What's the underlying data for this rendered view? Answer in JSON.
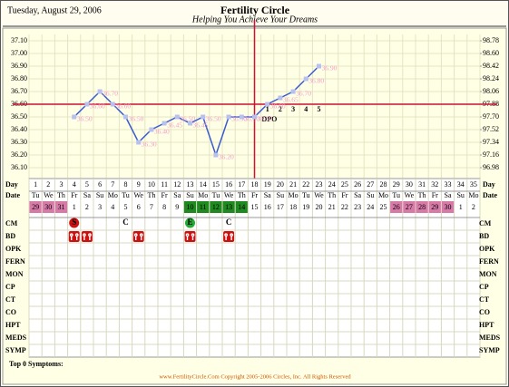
{
  "header": {
    "date": "Tuesday, August 29, 2006",
    "title": "Fertility Circle",
    "subtitle": "Helping You Achieve Your Dreams"
  },
  "chart_data": {
    "type": "line",
    "categories": [
      1,
      2,
      3,
      4,
      5,
      6,
      7,
      8,
      9,
      10,
      11,
      12,
      13,
      14,
      15,
      16,
      17,
      18,
      19,
      20,
      21,
      22,
      23,
      24,
      25,
      26,
      27,
      28,
      29,
      30,
      31,
      32,
      33,
      34,
      35
    ],
    "values": [
      null,
      null,
      null,
      36.5,
      36.6,
      36.7,
      36.6,
      36.5,
      36.3,
      36.4,
      36.45,
      36.5,
      36.45,
      36.5,
      36.2,
      36.5,
      36.5,
      36.5,
      36.6,
      36.65,
      36.7,
      36.8,
      36.9,
      null,
      null,
      null,
      null,
      null,
      null,
      null,
      null,
      null,
      null,
      null,
      null
    ],
    "value_labels": [
      null,
      null,
      null,
      "36.50",
      "36.60",
      "36.70",
      "36.60",
      "36.50",
      "36.30",
      "36.40",
      "36.45",
      "36.50",
      "36.45",
      "36.50",
      "36.20",
      "36.50",
      "36.50",
      "36.50",
      "36.60",
      "36.65",
      "36.70",
      "36.80",
      "36.90",
      null,
      null,
      null,
      null,
      null,
      null,
      null,
      null,
      null,
      null,
      null,
      null
    ],
    "color": "#3a5bd0",
    "marker_color": "#b8c0f0",
    "ylim": [
      36.1,
      37.1
    ],
    "yticks": [
      {
        "value": 37.1,
        "label": "37.10"
      },
      {
        "value": 37.0,
        "label": "37.00"
      },
      {
        "value": 36.9,
        "label": "36.90"
      },
      {
        "value": 36.8,
        "label": "36.80"
      },
      {
        "value": 36.7,
        "label": "36.70"
      },
      {
        "value": 36.6,
        "label": "36.60"
      },
      {
        "value": 36.5,
        "label": "36.50"
      },
      {
        "value": 36.4,
        "label": "36.40"
      },
      {
        "value": 36.3,
        "label": "36.30"
      },
      {
        "value": 36.2,
        "label": "36.20"
      },
      {
        "value": 36.1,
        "label": "36.10"
      }
    ],
    "y2lim": [
      96.98,
      98.78
    ],
    "y2ticks": [
      98.78,
      {
        "value": 98.6,
        "label": "98.60"
      },
      98.42,
      98.24,
      98.06,
      97.88,
      {
        "value": 97.7,
        "label": "97.70"
      },
      97.52,
      97.34,
      97.16,
      96.98
    ],
    "grid": true,
    "coverline": 36.6,
    "ovulation_day": 18,
    "marker_line_color": "#cc1133",
    "dpo": {
      "title": "DPO",
      "days": [
        1,
        2,
        3,
        4,
        5
      ]
    }
  },
  "calendar": {
    "day_label": "Day",
    "date_label": "Date",
    "weekdays": [
      "Tu",
      "We",
      "Th",
      "Fr",
      "Sa",
      "Su",
      "Mo",
      "Tu",
      "We",
      "Th",
      "Fr",
      "Sa",
      "Su",
      "Mo",
      "Tu",
      "We",
      "Th",
      "Fr",
      "Sa",
      "Su",
      "Mo",
      "Tu",
      "We",
      "Th",
      "Fr",
      "Sa",
      "Su",
      "Mo",
      "Tu",
      "We",
      "Th",
      "Fr",
      "Sa",
      "Su",
      "Mo"
    ],
    "dates": [
      29,
      30,
      31,
      1,
      2,
      3,
      4,
      5,
      6,
      7,
      8,
      9,
      10,
      11,
      12,
      13,
      14,
      15,
      16,
      17,
      18,
      19,
      20,
      21,
      22,
      23,
      24,
      25,
      26,
      27,
      28,
      29,
      30,
      1,
      2
    ],
    "date_colors": [
      "#d87aa8",
      "#d87aa8",
      "#d87aa8",
      null,
      null,
      null,
      null,
      null,
      null,
      null,
      null,
      null,
      "#1f8a1f",
      "#1f8a1f",
      "#1f8a1f",
      "#1f8a1f",
      "#1f8a1f",
      null,
      null,
      null,
      null,
      null,
      null,
      null,
      null,
      null,
      null,
      null,
      "#d87aa8",
      "#d87aa8",
      "#d87aa8",
      "#d87aa8",
      "#d87aa8",
      null,
      null
    ],
    "rows": [
      "CM",
      "BD",
      "OPK",
      "FERN",
      "MON",
      "CP",
      "CT",
      "CO",
      "HPT",
      "MEDS",
      "SYMP"
    ],
    "cm": [
      {
        "day": 4,
        "text": "S",
        "circle": "#cc1111"
      },
      {
        "day": 8,
        "text": "C"
      },
      {
        "day": 13,
        "text": "E",
        "circle": "#22aa33"
      },
      {
        "day": 16,
        "text": "C"
      }
    ],
    "bd_days": [
      4,
      5,
      9,
      13,
      16
    ],
    "bd_color": "#cc1111"
  },
  "footer": {
    "symptoms": "Top 0 Symptoms:",
    "copyright": "www.FertilityCircle.Com Copyright 2005-2006 Circles, Inc. All Rights Reserved"
  }
}
